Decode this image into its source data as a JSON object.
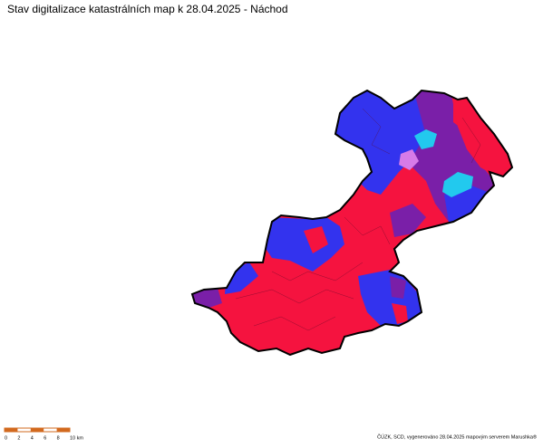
{
  "title": "Stav digitalizace katastrálních map k 28.04.2025 - Náchod",
  "scale_bar": {
    "labels": [
      "0",
      "2",
      "4",
      "6",
      "8",
      "10 km"
    ]
  },
  "credit": "ČÚZK, SCD, vygenerováno 28.04.2025 mapovým serverem Marushka®"
}
